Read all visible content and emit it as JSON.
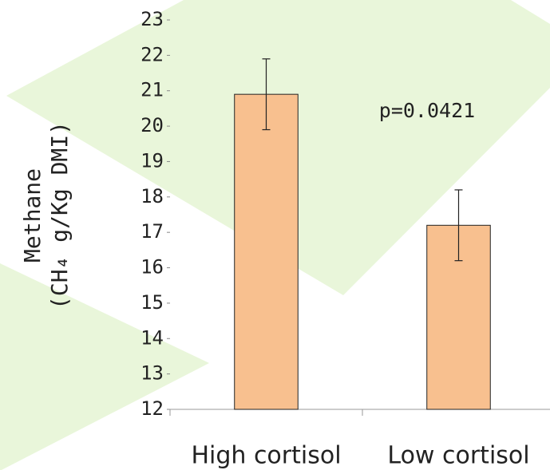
{
  "chart_data": {
    "type": "bar",
    "ylabel": [
      "Methane",
      "(CH₄ g/Kg DMI)"
    ],
    "categories": [
      "High cortisol",
      "Low cortisol"
    ],
    "values": [
      20.9,
      17.2
    ],
    "errors": [
      1.0,
      1.0
    ],
    "color": "#f8c08f",
    "ylim": [
      12,
      23
    ],
    "yticks": [
      12,
      13,
      14,
      15,
      16,
      17,
      18,
      19,
      20,
      21,
      22,
      23
    ],
    "annotation": "p=0.0421"
  }
}
